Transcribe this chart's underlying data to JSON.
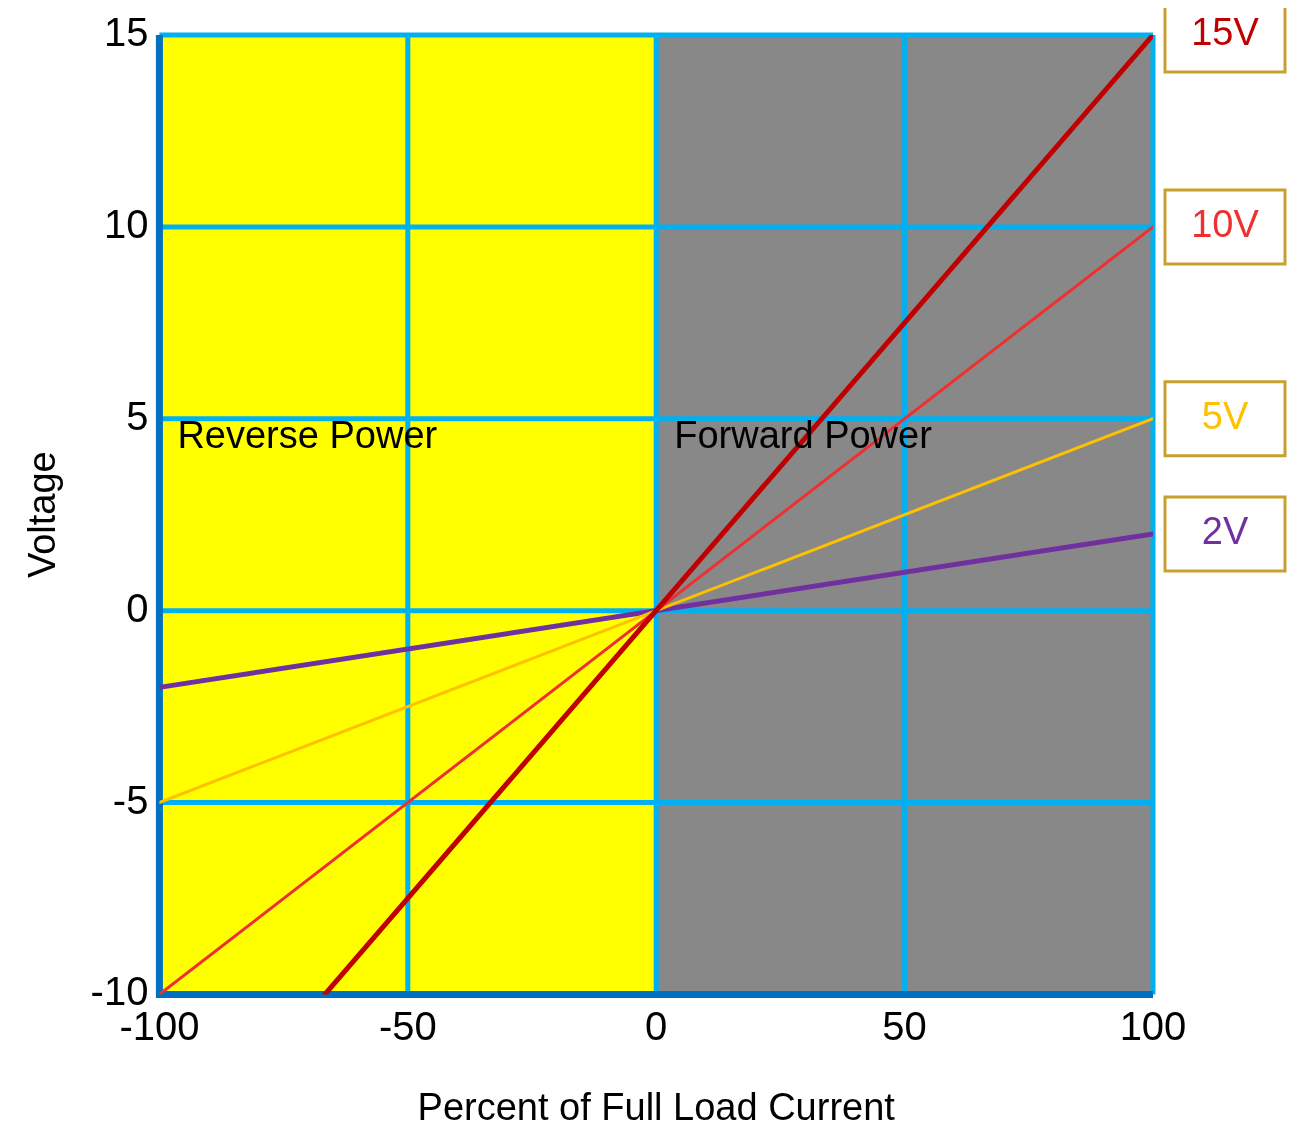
{
  "chart_data": {
    "type": "line",
    "xlabel": "Percent of Full Load Current",
    "ylabel": "Voltage",
    "xlim": [
      -100,
      100
    ],
    "xticks": [
      -100,
      -50,
      0,
      50,
      100
    ],
    "ylim": [
      -10,
      15
    ],
    "yticks": [
      -10,
      -5,
      0,
      5,
      10,
      15
    ],
    "grid": true,
    "marker": "none",
    "line_style": "solid",
    "bands": [
      {
        "axis": "x",
        "from": -100,
        "to": 0,
        "label": "Reverse Power",
        "color": "#ffff00"
      },
      {
        "axis": "x",
        "from": 0,
        "to": 100,
        "label": "Forward Power",
        "color": "#888888"
      }
    ],
    "series": [
      {
        "name": "15V",
        "color": "#c00000",
        "x": [
          -66.7,
          100
        ],
        "values": [
          -10,
          15
        ]
      },
      {
        "name": "10V",
        "color": "#ee3030",
        "x": [
          -100,
          100
        ],
        "values": [
          -10,
          10
        ]
      },
      {
        "name": "5V",
        "color": "#ffc000",
        "x": [
          -100,
          100
        ],
        "values": [
          -5,
          5
        ]
      },
      {
        "name": "2V",
        "color": "#7030a0",
        "x": [
          -100,
          100
        ],
        "values": [
          -2,
          2
        ]
      }
    ]
  }
}
